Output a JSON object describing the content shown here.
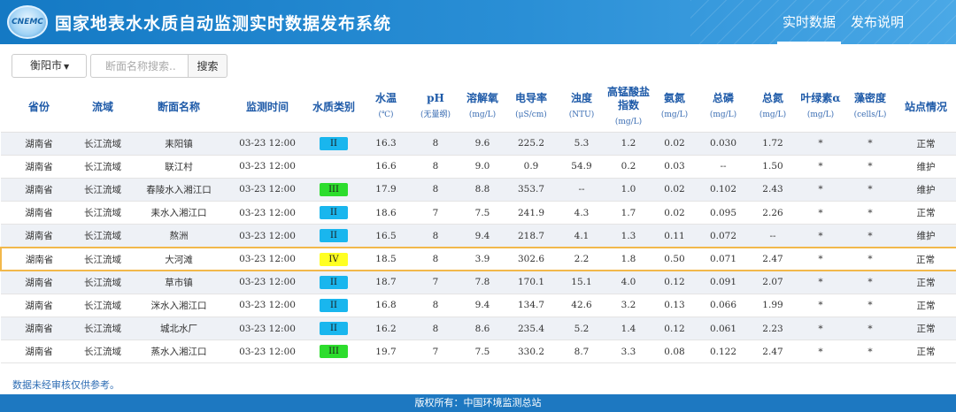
{
  "header": {
    "logo_text": "CNEMC",
    "title": "国家地表水水质自动监测实时数据发布系统",
    "nav": [
      {
        "label": "实时数据",
        "active": true
      },
      {
        "label": "发布说明",
        "active": false
      }
    ]
  },
  "filters": {
    "city": "衡阳市",
    "search_placeholder": "断面名称搜索..",
    "search_button": "搜索"
  },
  "table": {
    "columns": [
      {
        "label": "省份",
        "unit": ""
      },
      {
        "label": "流域",
        "unit": ""
      },
      {
        "label": "断面名称",
        "unit": ""
      },
      {
        "label": "监测时间",
        "unit": ""
      },
      {
        "label": "水质类别",
        "unit": ""
      },
      {
        "label": "水温",
        "unit": "(℃)"
      },
      {
        "label": "pH",
        "unit": "(无量纲)"
      },
      {
        "label": "溶解氧",
        "unit": "(mg/L)"
      },
      {
        "label": "电导率",
        "unit": "(μS/cm)"
      },
      {
        "label": "浊度",
        "unit": "(NTU)"
      },
      {
        "label": "高锰酸盐指数",
        "unit": "(mg/L)"
      },
      {
        "label": "氨氮",
        "unit": "(mg/L)"
      },
      {
        "label": "总磷",
        "unit": "(mg/L)"
      },
      {
        "label": "总氮",
        "unit": "(mg/L)"
      },
      {
        "label": "叶绿素α",
        "unit": "(mg/L)"
      },
      {
        "label": "藻密度",
        "unit": "(cells/L)"
      },
      {
        "label": "站点情况",
        "unit": ""
      }
    ],
    "rows": [
      [
        "湖南省",
        "长江流域",
        "耒阳镇",
        "03-23 12:00",
        "II",
        "16.3",
        "8",
        "9.6",
        "225.2",
        "5.3",
        "1.2",
        "0.02",
        "0.030",
        "1.72",
        "*",
        "*",
        "正常"
      ],
      [
        "湖南省",
        "长江流域",
        "联江村",
        "03-23 12:00",
        "",
        "16.6",
        "8",
        "9.0",
        "0.9",
        "54.9",
        "0.2",
        "0.03",
        "--",
        "1.50",
        "*",
        "*",
        "维护"
      ],
      [
        "湖南省",
        "长江流域",
        "春陵水入湘江口",
        "03-23 12:00",
        "III",
        "17.9",
        "8",
        "8.8",
        "353.7",
        "--",
        "1.0",
        "0.02",
        "0.102",
        "2.43",
        "*",
        "*",
        "维护"
      ],
      [
        "湖南省",
        "长江流域",
        "耒水入湘江口",
        "03-23 12:00",
        "II",
        "18.6",
        "7",
        "7.5",
        "241.9",
        "4.3",
        "1.7",
        "0.02",
        "0.095",
        "2.26",
        "*",
        "*",
        "正常"
      ],
      [
        "湖南省",
        "长江流域",
        "熬洲",
        "03-23 12:00",
        "II",
        "16.5",
        "8",
        "9.4",
        "218.7",
        "4.1",
        "1.3",
        "0.11",
        "0.072",
        "--",
        "*",
        "*",
        "维护"
      ],
      [
        "湖南省",
        "长江流域",
        "大河滩",
        "03-23 12:00",
        "IV",
        "18.5",
        "8",
        "3.9",
        "302.6",
        "2.2",
        "1.8",
        "0.50",
        "0.071",
        "2.47",
        "*",
        "*",
        "正常"
      ],
      [
        "湖南省",
        "长江流域",
        "草市镇",
        "03-23 12:00",
        "II",
        "18.7",
        "7",
        "7.8",
        "170.1",
        "15.1",
        "4.0",
        "0.12",
        "0.091",
        "2.07",
        "*",
        "*",
        "正常"
      ],
      [
        "湖南省",
        "长江流域",
        "洣水入湘江口",
        "03-23 12:00",
        "II",
        "16.8",
        "8",
        "9.4",
        "134.7",
        "42.6",
        "3.2",
        "0.13",
        "0.066",
        "1.99",
        "*",
        "*",
        "正常"
      ],
      [
        "湖南省",
        "长江流域",
        "城北水厂",
        "03-23 12:00",
        "II",
        "16.2",
        "8",
        "8.6",
        "235.4",
        "5.2",
        "1.4",
        "0.12",
        "0.061",
        "2.23",
        "*",
        "*",
        "正常"
      ],
      [
        "湖南省",
        "长江流域",
        "蒸水入湘江口",
        "03-23 12:00",
        "III",
        "19.7",
        "7",
        "7.5",
        "330.2",
        "8.7",
        "3.3",
        "0.08",
        "0.122",
        "2.47",
        "*",
        "*",
        "正常"
      ]
    ],
    "highlighted_row": 5,
    "grade_colors": {
      "II": "#19b6ee",
      "III": "#2ddd2d",
      "IV": "#ffff22"
    }
  },
  "note": "数据未经审核仅供参考。",
  "footer": "版权所有：中国环境监测总站"
}
